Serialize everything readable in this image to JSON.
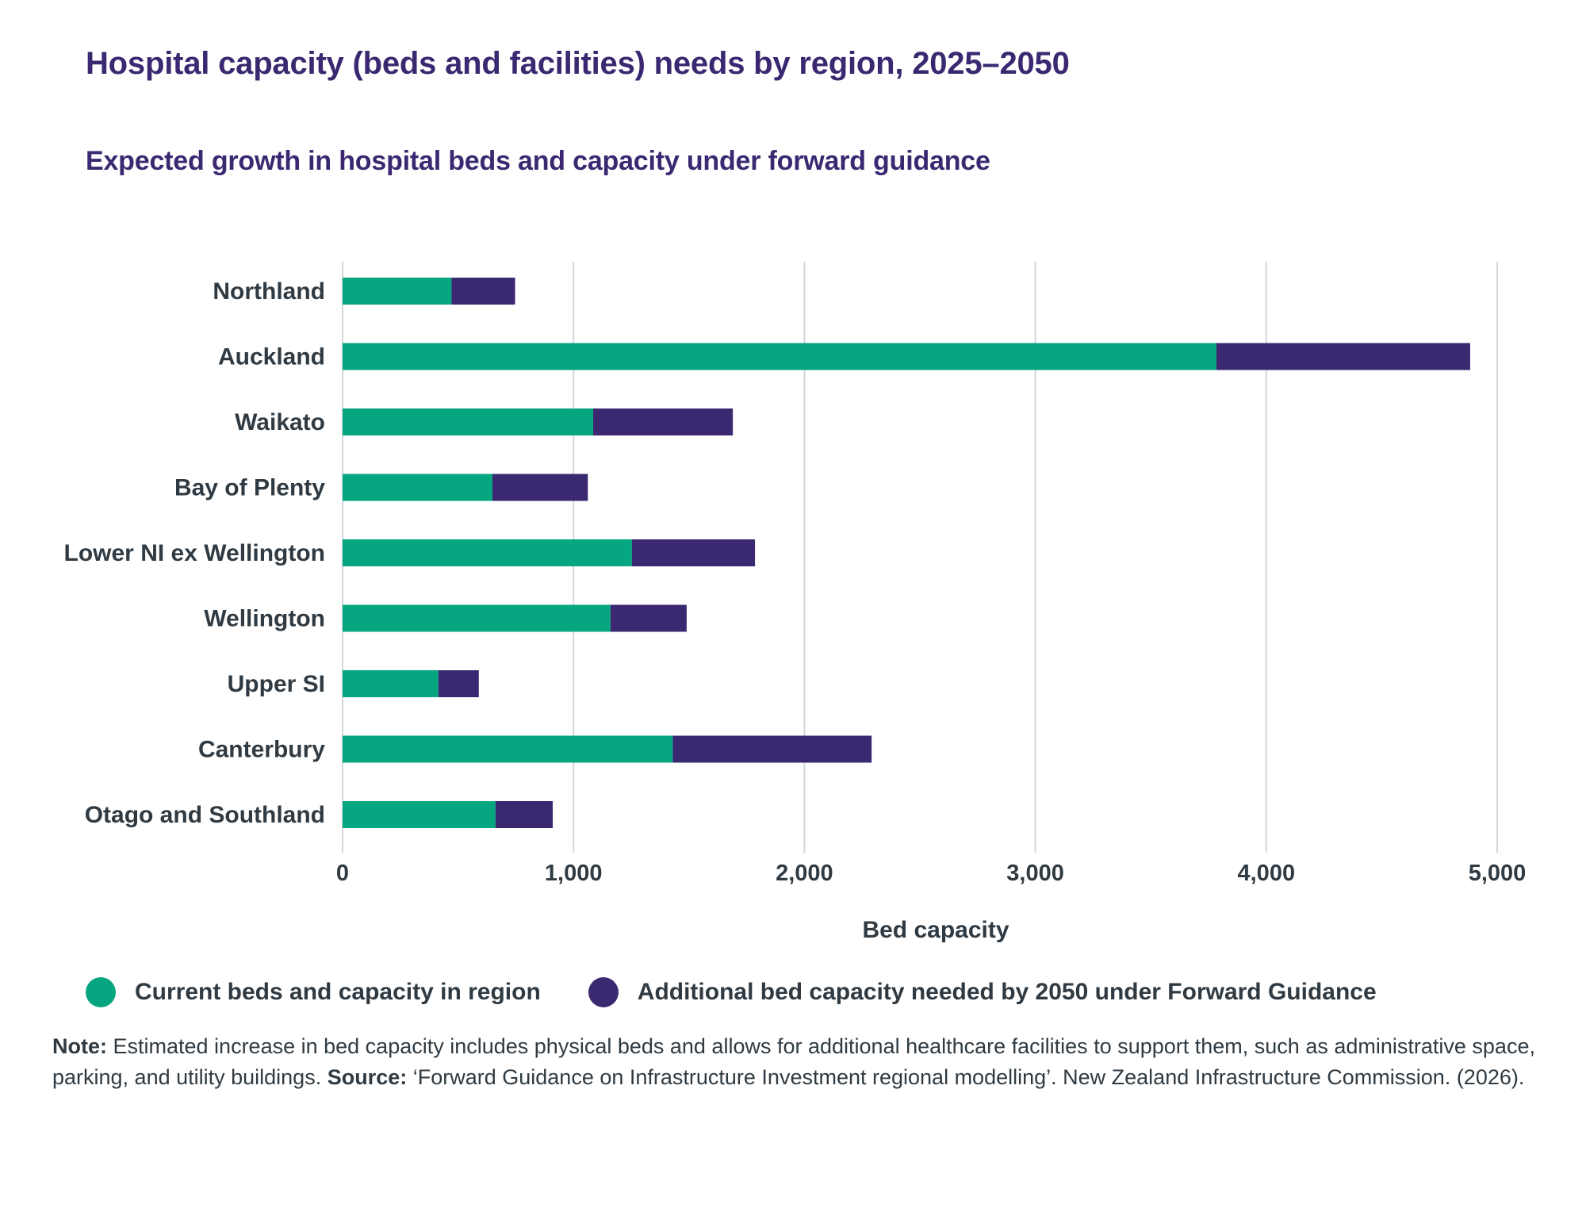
{
  "title": "Hospital capacity (beds and facilities) needs by region, 2025–2050",
  "subtitle": "Expected growth in hospital beds and capacity under forward guidance",
  "colors": {
    "title": "#3a2871",
    "current": "#05a680",
    "additional": "#3a2871",
    "grid": "#d3d6da",
    "text": "#2f3a42"
  },
  "legend": [
    {
      "label": "Current beds and capacity in region",
      "color": "#05a680"
    },
    {
      "label": "Additional bed capacity needed by 2050 under Forward Guidance",
      "color": "#3a2871"
    }
  ],
  "note": {
    "note_label": "Note:",
    "note_text": " Estimated increase in bed capacity includes physical beds and allows for additional healthcare facilities to support them, such as administrative space, parking, and utility buildings. ",
    "source_label": "Source:",
    "source_text": " ‘Forward Guidance on Infrastructure Investment regional modelling’. New Zealand Infrastructure Commission. (2026)."
  },
  "chart_data": {
    "type": "bar",
    "orientation": "horizontal",
    "stacked": true,
    "title": "Hospital capacity (beds and facilities) needs by region, 2025–2050",
    "subtitle": "Expected growth in hospital beds and capacity under forward guidance",
    "xlabel": "Bed capacity",
    "ylabel": "",
    "xlim": [
      0,
      5000
    ],
    "xticks": [
      0,
      1000,
      2000,
      3000,
      4000,
      5000
    ],
    "xtick_labels": [
      "0",
      "1,000",
      "2,000",
      "3,000",
      "4,000",
      "5,000"
    ],
    "grid": "vertical",
    "legend_position": "bottom",
    "categories": [
      "Northland",
      "Auckland",
      "Waikato",
      "Bay of Plenty",
      "Lower NI ex Wellington",
      "Wellington",
      "Upper SI",
      "Canterbury",
      "Otago and Southland"
    ],
    "series": [
      {
        "name": "Current beds and capacity in region",
        "color": "#05a680",
        "values": [
          472,
          3784,
          1085,
          649,
          1253,
          1160,
          415,
          1430,
          662
        ]
      },
      {
        "name": "Additional bed capacity needed by 2050 under Forward Guidance",
        "color": "#3a2871",
        "values": [
          275,
          1099,
          605,
          413,
          533,
          330,
          175,
          861,
          248
        ]
      }
    ]
  }
}
